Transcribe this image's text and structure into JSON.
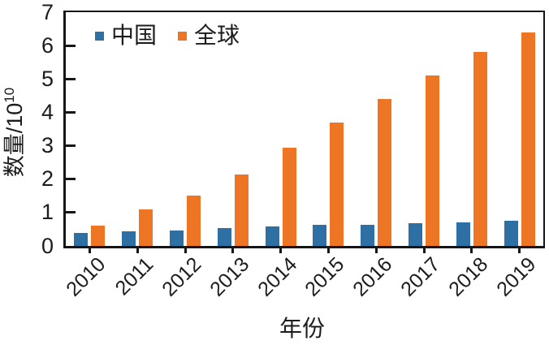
{
  "chart_data": {
    "type": "bar",
    "title": "",
    "categories": [
      "2010",
      "2011",
      "2012",
      "2013",
      "2014",
      "2015",
      "2016",
      "2017",
      "2018",
      "2019"
    ],
    "series": [
      {
        "name": "中国",
        "color": "#2E6FA4",
        "values": [
          0.4,
          0.43,
          0.47,
          0.53,
          0.58,
          0.62,
          0.64,
          0.67,
          0.71,
          0.76
        ]
      },
      {
        "name": "全球",
        "color": "#ED7524",
        "values": [
          0.6,
          1.1,
          1.5,
          2.15,
          2.95,
          3.7,
          4.4,
          5.1,
          5.8,
          6.4
        ]
      }
    ],
    "xlabel": "年份",
    "ylabel": "数量/10¹⁰",
    "ylabel_base": "数量/10",
    "ylabel_exponent": "10",
    "ylim": [
      0,
      7
    ],
    "yticks": [
      0,
      1,
      2,
      3,
      4,
      5,
      6,
      7
    ],
    "legend_position": "top-left-inside",
    "grid": false,
    "axis_color": "#161616",
    "background_color": "#FFFFFF"
  }
}
